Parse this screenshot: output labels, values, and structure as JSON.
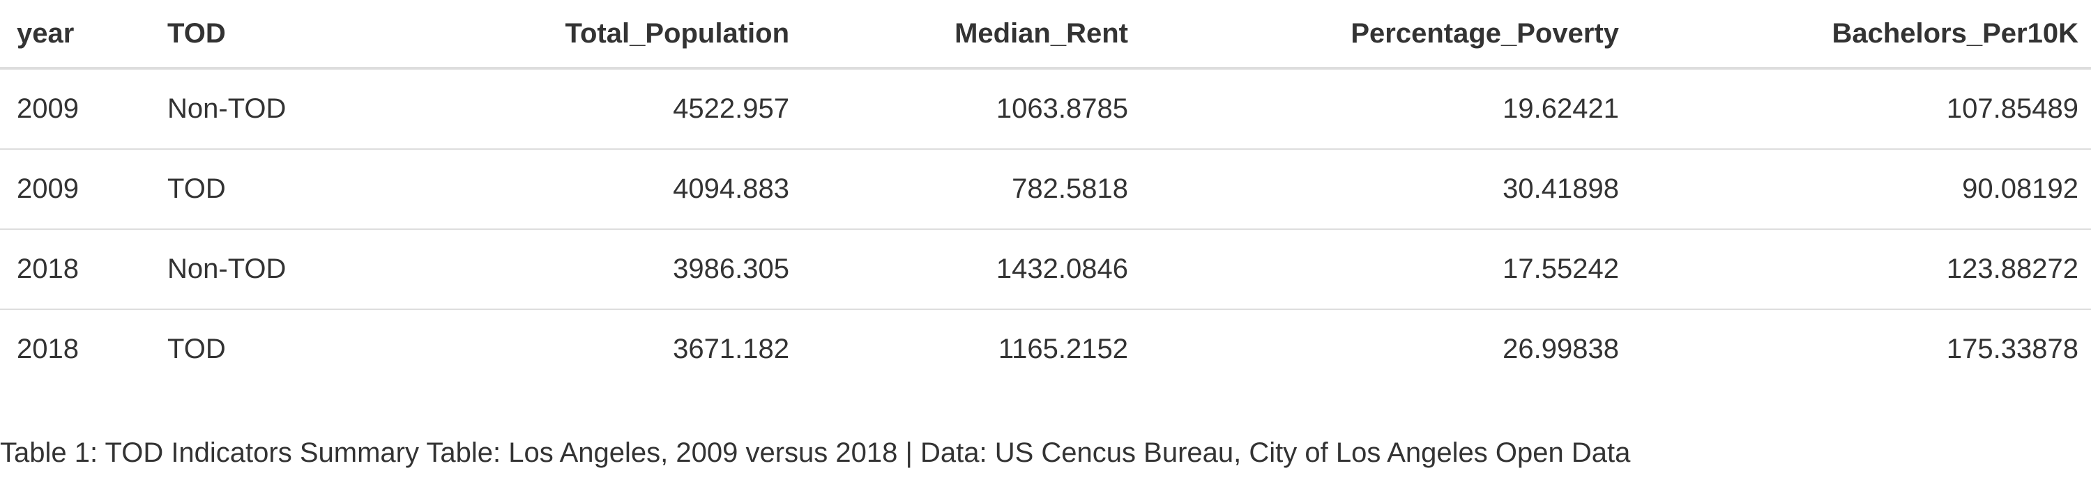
{
  "table": {
    "columns": [
      "year",
      "TOD",
      "Total_Population",
      "Median_Rent",
      "Percentage_Poverty",
      "Bachelors_Per10K"
    ],
    "rows": [
      [
        "2009",
        "Non-TOD",
        "4522.957",
        "1063.8785",
        "19.62421",
        "107.85489"
      ],
      [
        "2009",
        "TOD",
        "4094.883",
        "782.5818",
        "30.41898",
        "90.08192"
      ],
      [
        "2018",
        "Non-TOD",
        "3986.305",
        "1432.0846",
        "17.55242",
        "123.88272"
      ],
      [
        "2018",
        "TOD",
        "3671.182",
        "1165.2152",
        "26.99838",
        "175.33878"
      ]
    ]
  },
  "caption": "Table 1: TOD Indicators Summary Table: Los Angeles, 2009 versus 2018 | Data: US Cencus Bureau, City of Los Angeles Open Data",
  "colors": {
    "text": "#333333",
    "rule": "#dddddd",
    "background": "#ffffff"
  }
}
